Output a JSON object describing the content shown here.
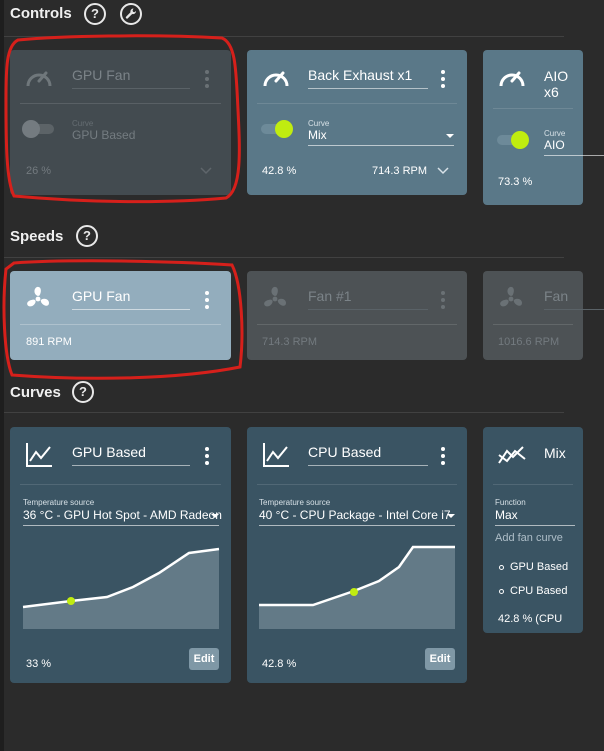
{
  "sections": {
    "controls": "Controls",
    "speeds": "Speeds",
    "curves": "Curves"
  },
  "help_glyph": "?",
  "controls": [
    {
      "title": "GPU Fan",
      "curve_label": "Curve",
      "curve_value": "GPU Based",
      "percent": "26 %",
      "rpm": "",
      "enabled": false
    },
    {
      "title": "Back Exhaust x1",
      "curve_label": "Curve",
      "curve_value": "Mix",
      "percent": "42.8 %",
      "rpm": "714.3 RPM",
      "enabled": true
    },
    {
      "title_line1": "AIO",
      "title_line2": "x6",
      "curve_label": "Curve",
      "curve_value": "AIO",
      "percent": "73.3 %",
      "enabled": true
    }
  ],
  "speeds": [
    {
      "title": "GPU Fan",
      "rpm": "891 RPM",
      "active": true
    },
    {
      "title": "Fan #1",
      "rpm": "714.3 RPM",
      "active": false
    },
    {
      "title": "Fan",
      "rpm": "1016.6 RPM",
      "active": false
    }
  ],
  "curves": [
    {
      "title": "GPU Based",
      "source_label": "Temperature source",
      "source_value": "36 °C - GPU Hot Spot - AMD Radeon",
      "percent": "33 %",
      "edit_label": "Edit"
    },
    {
      "title": "CPU Based",
      "source_label": "Temperature source",
      "source_value": "40 °C - CPU Package - Intel Core i7",
      "percent": "42.8 %",
      "edit_label": "Edit"
    },
    {
      "title": "Mix",
      "function_label": "Function",
      "function_value": "Max",
      "add_placeholder": "Add fan curve",
      "items": [
        "GPU Based",
        "CPU Based"
      ],
      "percent": "42.8 % (CPU"
    }
  ],
  "colors": {
    "accent": "#c0ec10",
    "annotation": "#d6201b"
  }
}
